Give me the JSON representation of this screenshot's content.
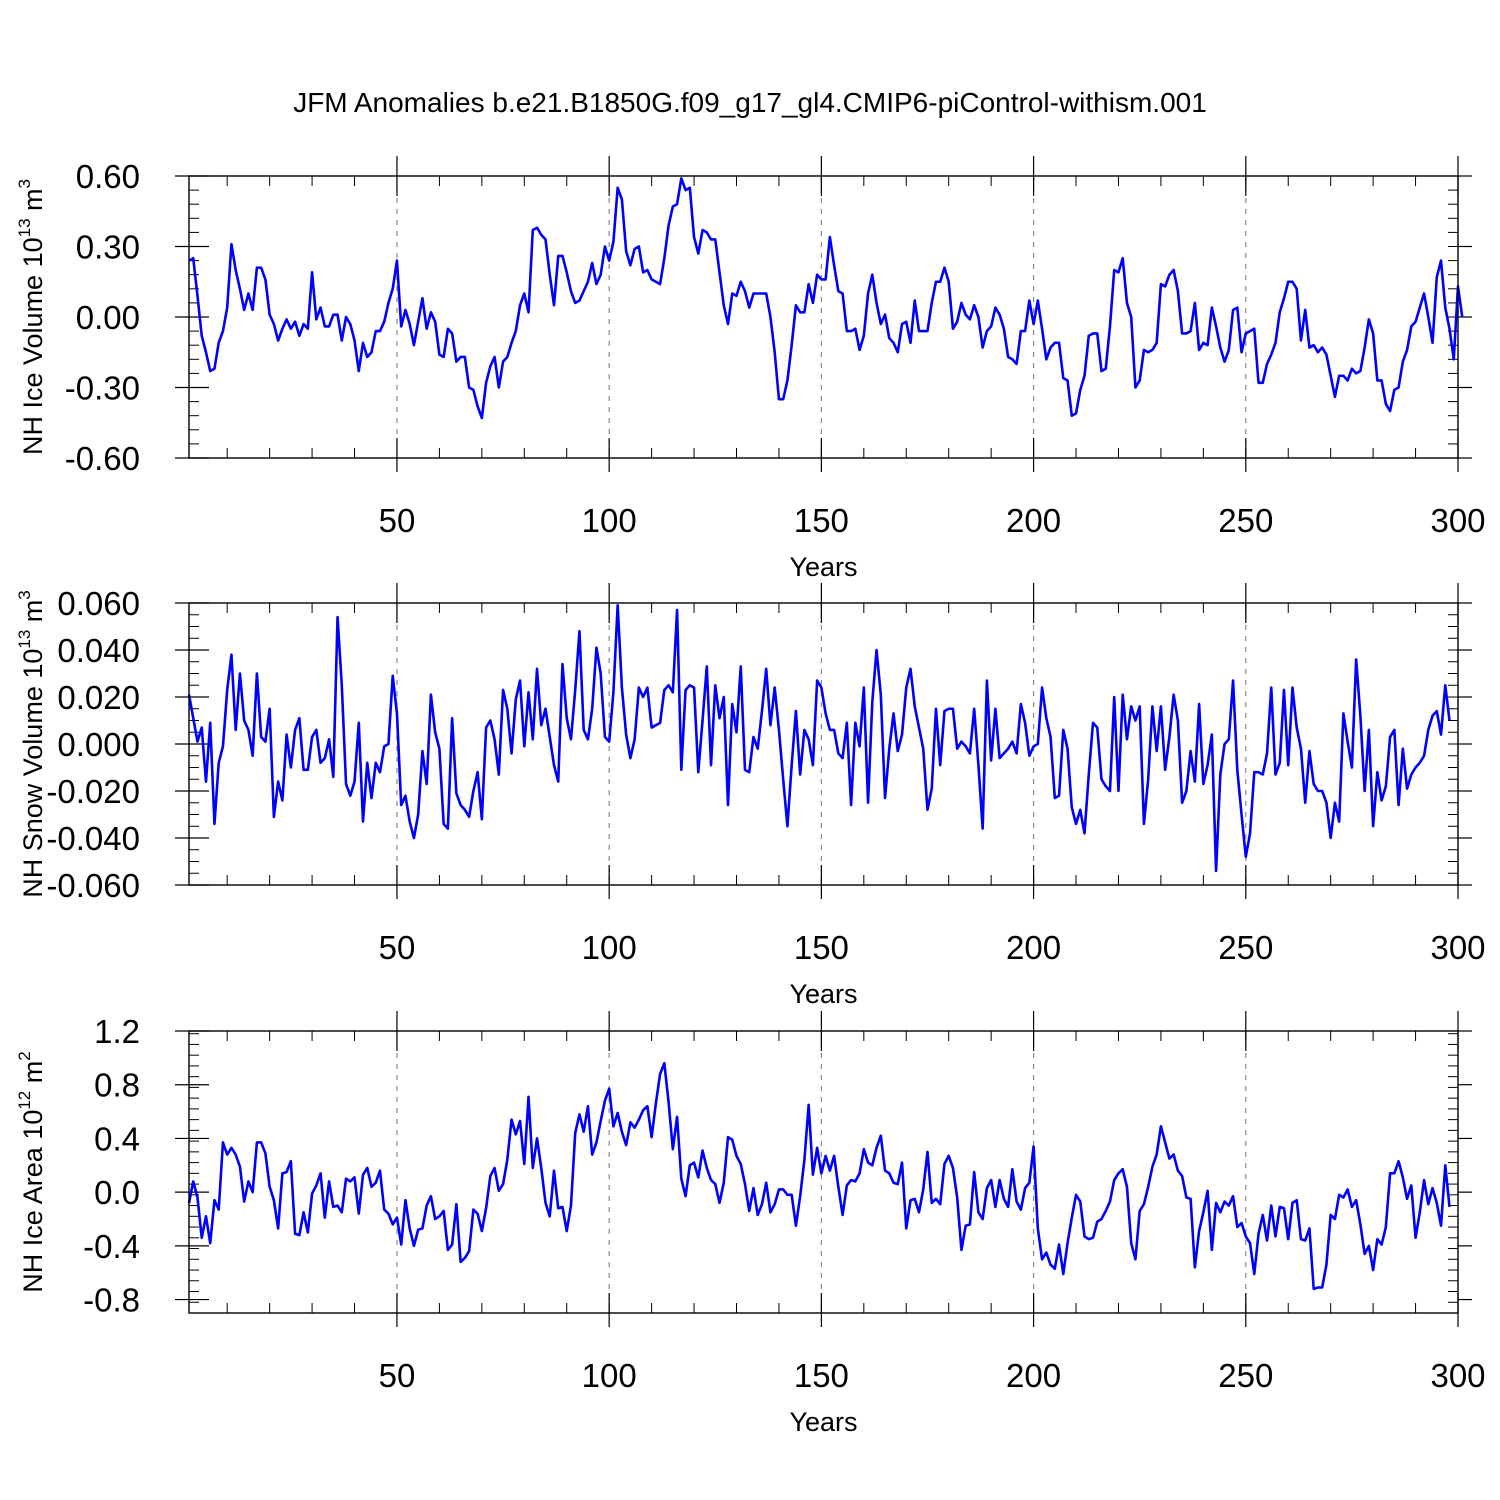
{
  "title": "JFM Anomalies b.e21.B1850G.f09_g17_gl4.CMIP6-piControl-withism.001",
  "colors": {
    "series": "#0000ff",
    "grid": "#888888",
    "axis": "#000000"
  },
  "chart_data": [
    {
      "type": "line",
      "xlabel": "Years",
      "ylabel": {
        "main": "NH Ice Volume 10",
        "exp": "13",
        "unit": " m",
        "unit_exp": "3"
      },
      "xlim": [
        1,
        300
      ],
      "ylim": [
        -0.6,
        0.6
      ],
      "xticks": [
        50,
        100,
        150,
        200,
        250,
        300
      ],
      "xtick_labels": [
        "50",
        "100",
        "150",
        "200",
        "250",
        "300"
      ],
      "yticks": [
        0.6,
        0.3,
        0.0,
        -0.3,
        -0.6
      ],
      "ytick_labels": [
        "0.60",
        "0.30",
        "0.00",
        "-0.30",
        "-0.60"
      ],
      "y_minor": 0.06,
      "grid_x": [
        50,
        100,
        150,
        200,
        250
      ],
      "start_year": 1,
      "values": [
        0.24,
        0.25,
        0.09,
        -0.08,
        -0.15,
        -0.23,
        -0.22,
        -0.11,
        -0.06,
        0.04,
        0.31,
        0.2,
        0.12,
        0.03,
        0.1,
        0.03,
        0.21,
        0.21,
        0.16,
        0.01,
        -0.03,
        -0.1,
        -0.05,
        -0.01,
        -0.05,
        -0.02,
        -0.08,
        -0.03,
        -0.05,
        0.19,
        -0.01,
        0.04,
        -0.04,
        -0.04,
        0.01,
        0.01,
        -0.1,
        0.0,
        -0.03,
        -0.1,
        -0.23,
        -0.11,
        -0.17,
        -0.15,
        -0.06,
        -0.06,
        -0.02,
        0.06,
        0.12,
        0.24,
        -0.04,
        0.03,
        -0.03,
        -0.12,
        -0.02,
        0.08,
        -0.05,
        0.02,
        -0.02,
        -0.16,
        -0.17,
        -0.05,
        -0.07,
        -0.19,
        -0.17,
        -0.17,
        -0.3,
        -0.31,
        -0.38,
        -0.43,
        -0.28,
        -0.21,
        -0.17,
        -0.3,
        -0.19,
        -0.17,
        -0.11,
        -0.06,
        0.05,
        0.1,
        0.02,
        0.37,
        0.38,
        0.35,
        0.33,
        0.18,
        0.05,
        0.26,
        0.26,
        0.19,
        0.11,
        0.06,
        0.07,
        0.11,
        0.15,
        0.23,
        0.14,
        0.18,
        0.3,
        0.24,
        0.32,
        0.55,
        0.5,
        0.28,
        0.22,
        0.29,
        0.3,
        0.19,
        0.2,
        0.16,
        0.15,
        0.14,
        0.25,
        0.39,
        0.47,
        0.48,
        0.59,
        0.54,
        0.55,
        0.34,
        0.27,
        0.37,
        0.36,
        0.33,
        0.33,
        0.19,
        0.05,
        -0.03,
        0.1,
        0.09,
        0.15,
        0.11,
        0.04,
        0.1,
        0.1,
        0.1,
        0.1,
        0.0,
        -0.15,
        -0.35,
        -0.35,
        -0.27,
        -0.12,
        0.05,
        0.02,
        0.02,
        0.14,
        0.06,
        0.18,
        0.16,
        0.16,
        0.34,
        0.22,
        0.11,
        0.1,
        -0.06,
        -0.06,
        -0.05,
        -0.14,
        -0.08,
        0.1,
        0.18,
        0.06,
        -0.03,
        0.01,
        -0.09,
        -0.11,
        -0.15,
        -0.03,
        -0.02,
        -0.11,
        0.07,
        -0.06,
        -0.06,
        -0.06,
        0.06,
        0.15,
        0.15,
        0.21,
        0.15,
        -0.05,
        -0.02,
        0.06,
        0.01,
        -0.01,
        0.05,
        0.0,
        -0.13,
        -0.06,
        -0.04,
        0.04,
        0.01,
        -0.05,
        -0.17,
        -0.18,
        -0.2,
        -0.06,
        -0.06,
        0.07,
        -0.03,
        0.07,
        -0.05,
        -0.18,
        -0.13,
        -0.11,
        -0.11,
        -0.26,
        -0.27,
        -0.42,
        -0.41,
        -0.31,
        -0.25,
        -0.08,
        -0.07,
        -0.07,
        -0.23,
        -0.22,
        -0.04,
        0.2,
        0.19,
        0.25,
        0.06,
        0.0,
        -0.3,
        -0.27,
        -0.14,
        -0.15,
        -0.14,
        -0.11,
        0.14,
        0.13,
        0.18,
        0.2,
        0.11,
        -0.07,
        -0.07,
        -0.06,
        0.06,
        -0.14,
        -0.11,
        -0.12,
        0.04,
        -0.04,
        -0.13,
        -0.19,
        -0.14,
        0.03,
        0.04,
        -0.15,
        -0.07,
        -0.06,
        -0.05,
        -0.28,
        -0.28,
        -0.2,
        -0.16,
        -0.11,
        0.02,
        0.08,
        0.15,
        0.15,
        0.12,
        -0.1,
        0.03,
        -0.13,
        -0.12,
        -0.15,
        -0.13,
        -0.16,
        -0.25,
        -0.34,
        -0.25,
        -0.25,
        -0.27,
        -0.22,
        -0.24,
        -0.23,
        -0.13,
        -0.01,
        -0.07,
        -0.27,
        -0.27,
        -0.37,
        -0.4,
        -0.31,
        -0.3,
        -0.19,
        -0.14,
        -0.04,
        -0.02,
        0.04,
        0.1,
        0.0,
        -0.11,
        0.17,
        0.24,
        0.04,
        -0.05,
        -0.18,
        0.13,
        0.0
      ]
    },
    {
      "type": "line",
      "xlabel": "Years",
      "ylabel": {
        "main": "NH Snow Volume 10",
        "exp": "13",
        "unit": " m",
        "unit_exp": "3"
      },
      "xlim": [
        1,
        300
      ],
      "ylim": [
        -0.06,
        0.06
      ],
      "xticks": [
        50,
        100,
        150,
        200,
        250,
        300
      ],
      "xtick_labels": [
        "50",
        "100",
        "150",
        "200",
        "250",
        "300"
      ],
      "yticks": [
        0.06,
        0.04,
        0.02,
        0.0,
        -0.02,
        -0.04,
        -0.06
      ],
      "ytick_labels": [
        "0.060",
        "0.040",
        "0.020",
        "0.000",
        "-0.020",
        "-0.040",
        "-0.060"
      ],
      "y_minor": 0.005,
      "grid_x": [
        50,
        100,
        150,
        200,
        250
      ],
      "start_year": 1,
      "values": [
        0.021,
        0.011,
        0.001,
        0.007,
        -0.016,
        0.009,
        -0.034,
        -0.008,
        -0.001,
        0.023,
        0.038,
        0.006,
        0.03,
        0.01,
        0.006,
        -0.005,
        0.03,
        0.003,
        0.001,
        0.015,
        -0.031,
        -0.016,
        -0.024,
        0.004,
        -0.01,
        0.006,
        0.011,
        -0.011,
        -0.011,
        0.003,
        0.006,
        -0.008,
        -0.006,
        0.002,
        -0.014,
        0.054,
        0.025,
        -0.017,
        -0.022,
        -0.016,
        0.009,
        -0.033,
        -0.008,
        -0.023,
        -0.008,
        -0.012,
        -0.001,
        0.0,
        0.029,
        0.013,
        -0.026,
        -0.022,
        -0.033,
        -0.04,
        -0.03,
        -0.003,
        -0.017,
        0.021,
        0.005,
        -0.002,
        -0.034,
        -0.036,
        0.011,
        -0.021,
        -0.026,
        -0.028,
        -0.031,
        -0.02,
        -0.012,
        -0.032,
        0.007,
        0.01,
        0.002,
        -0.013,
        0.023,
        0.015,
        -0.004,
        0.019,
        0.027,
        -0.001,
        0.022,
        0.002,
        0.032,
        0.008,
        0.015,
        0.003,
        -0.009,
        -0.016,
        0.034,
        0.011,
        0.002,
        0.023,
        0.048,
        0.006,
        0.002,
        0.015,
        0.041,
        0.03,
        0.003,
        0.001,
        0.022,
        0.059,
        0.024,
        0.004,
        -0.006,
        0.002,
        0.024,
        0.02,
        0.024,
        0.007,
        0.008,
        0.009,
        0.023,
        0.025,
        0.022,
        0.057,
        -0.011,
        0.023,
        0.025,
        0.024,
        -0.012,
        0.01,
        0.033,
        -0.009,
        0.025,
        0.011,
        0.02,
        -0.026,
        0.017,
        0.005,
        0.033,
        -0.011,
        -0.012,
        0.003,
        -0.002,
        0.014,
        0.032,
        0.008,
        0.024,
        0.006,
        -0.015,
        -0.035,
        -0.009,
        0.014,
        -0.013,
        0.006,
        0.002,
        -0.009,
        0.027,
        0.024,
        0.013,
        0.006,
        0.006,
        -0.004,
        -0.006,
        0.009,
        -0.026,
        0.009,
        -0.001,
        0.024,
        -0.025,
        0.018,
        0.04,
        0.021,
        -0.023,
        -0.002,
        0.013,
        -0.003,
        0.004,
        0.024,
        0.032,
        0.016,
        0.007,
        -0.002,
        -0.028,
        -0.019,
        0.015,
        -0.009,
        0.014,
        0.015,
        0.015,
        -0.002,
        0.001,
        -0.001,
        -0.004,
        0.015,
        -0.009,
        -0.036,
        0.027,
        -0.007,
        0.015,
        -0.006,
        -0.004,
        -0.002,
        0.001,
        -0.004,
        0.017,
        0.009,
        -0.005,
        -0.001,
        0.0,
        0.024,
        0.011,
        0.003,
        -0.023,
        -0.022,
        0.006,
        -0.002,
        -0.027,
        -0.034,
        -0.028,
        -0.038,
        -0.013,
        0.009,
        0.007,
        -0.015,
        -0.018,
        -0.02,
        0.02,
        -0.02,
        0.021,
        0.002,
        0.016,
        0.01,
        0.016,
        -0.034,
        -0.015,
        0.016,
        -0.003,
        0.016,
        -0.011,
        0.003,
        0.021,
        0.01,
        -0.025,
        -0.02,
        -0.003,
        -0.016,
        0.017,
        -0.017,
        -0.009,
        0.004,
        -0.054,
        -0.013,
        0.0,
        0.002,
        0.027,
        -0.011,
        -0.03,
        -0.048,
        -0.038,
        -0.012,
        -0.012,
        -0.013,
        -0.004,
        0.024,
        -0.013,
        -0.008,
        0.023,
        -0.009,
        0.024,
        0.007,
        -0.002,
        -0.025,
        -0.003,
        -0.017,
        -0.02,
        -0.02,
        -0.025,
        -0.04,
        -0.025,
        -0.033,
        0.013,
        0.001,
        -0.01,
        0.036,
        0.012,
        -0.02,
        0.006,
        -0.035,
        -0.012,
        -0.024,
        -0.018,
        0.003,
        0.006,
        -0.026,
        -0.002,
        -0.019,
        -0.013,
        -0.01,
        -0.008,
        -0.005,
        0.006,
        0.012,
        0.014,
        0.004,
        0.025,
        0.01
      ]
    },
    {
      "type": "line",
      "xlabel": "Years",
      "ylabel": {
        "main": "NH Ice Area 10",
        "exp": "12",
        "unit": " m",
        "unit_exp": "2"
      },
      "xlim": [
        1,
        300
      ],
      "ylim": [
        -0.9,
        1.2
      ],
      "xticks": [
        50,
        100,
        150,
        200,
        250,
        300
      ],
      "xtick_labels": [
        "50",
        "100",
        "150",
        "200",
        "250",
        "300"
      ],
      "yticks": [
        1.2,
        0.8,
        0.4,
        0.0,
        -0.4,
        -0.8
      ],
      "ytick_labels": [
        "1.2",
        "0.8",
        "0.4",
        "0.0",
        "-0.4",
        "-0.8"
      ],
      "y_minor": 0.08,
      "grid_x": [
        50,
        100,
        150,
        200,
        250
      ],
      "start_year": 1,
      "values": [
        -0.08,
        0.08,
        -0.04,
        -0.34,
        -0.18,
        -0.38,
        -0.06,
        -0.13,
        0.37,
        0.28,
        0.33,
        0.28,
        0.19,
        -0.07,
        0.08,
        0.0,
        0.37,
        0.37,
        0.29,
        0.04,
        -0.06,
        -0.27,
        0.14,
        0.15,
        0.23,
        -0.31,
        -0.32,
        -0.15,
        -0.3,
        -0.01,
        0.05,
        0.14,
        -0.19,
        0.08,
        -0.11,
        -0.1,
        -0.15,
        0.1,
        0.08,
        0.11,
        -0.16,
        0.13,
        0.18,
        0.04,
        0.07,
        0.16,
        -0.13,
        -0.16,
        -0.24,
        -0.19,
        -0.39,
        -0.06,
        -0.27,
        -0.4,
        -0.28,
        -0.27,
        -0.1,
        -0.03,
        -0.2,
        -0.18,
        -0.14,
        -0.43,
        -0.39,
        -0.09,
        -0.52,
        -0.49,
        -0.44,
        -0.13,
        -0.16,
        -0.29,
        -0.12,
        0.12,
        0.18,
        0.01,
        0.06,
        0.24,
        0.54,
        0.43,
        0.53,
        0.21,
        0.71,
        0.18,
        0.4,
        0.18,
        -0.08,
        -0.18,
        0.16,
        -0.12,
        -0.11,
        -0.29,
        -0.1,
        0.44,
        0.58,
        0.45,
        0.64,
        0.28,
        0.37,
        0.53,
        0.68,
        0.77,
        0.49,
        0.59,
        0.45,
        0.35,
        0.52,
        0.48,
        0.54,
        0.61,
        0.64,
        0.41,
        0.66,
        0.88,
        0.96,
        0.67,
        0.32,
        0.56,
        0.1,
        -0.03,
        0.2,
        0.22,
        0.11,
        0.31,
        0.18,
        0.09,
        0.06,
        -0.08,
        0.07,
        0.41,
        0.39,
        0.27,
        0.21,
        0.06,
        -0.14,
        0.03,
        -0.17,
        -0.09,
        0.07,
        -0.15,
        -0.09,
        0.02,
        0.02,
        -0.02,
        -0.02,
        -0.25,
        -0.03,
        0.24,
        0.65,
        0.13,
        0.33,
        0.14,
        0.27,
        0.16,
        0.27,
        0.04,
        -0.17,
        0.05,
        0.09,
        0.08,
        0.14,
        0.32,
        0.22,
        0.2,
        0.33,
        0.42,
        0.16,
        0.14,
        0.07,
        0.06,
        0.22,
        -0.27,
        -0.06,
        -0.05,
        -0.15,
        0.02,
        0.3,
        -0.08,
        -0.05,
        -0.09,
        0.21,
        0.27,
        0.18,
        -0.04,
        -0.43,
        -0.25,
        -0.24,
        0.15,
        -0.15,
        -0.2,
        0.03,
        0.09,
        -0.11,
        0.09,
        -0.05,
        -0.11,
        0.17,
        -0.07,
        -0.13,
        0.03,
        0.07,
        0.34,
        -0.27,
        -0.5,
        -0.45,
        -0.54,
        -0.57,
        -0.39,
        -0.61,
        -0.38,
        -0.19,
        -0.02,
        -0.07,
        -0.33,
        -0.35,
        -0.34,
        -0.22,
        -0.2,
        -0.14,
        -0.07,
        0.09,
        0.14,
        0.17,
        0.04,
        -0.38,
        -0.5,
        -0.14,
        -0.09,
        0.04,
        0.19,
        0.28,
        0.49,
        0.37,
        0.25,
        0.28,
        0.16,
        0.12,
        -0.04,
        -0.05,
        -0.56,
        -0.29,
        -0.15,
        0.01,
        -0.43,
        -0.08,
        -0.15,
        -0.07,
        -0.1,
        -0.03,
        -0.26,
        -0.23,
        -0.33,
        -0.38,
        -0.61,
        -0.31,
        -0.17,
        -0.36,
        -0.1,
        -0.33,
        -0.11,
        -0.12,
        -0.35,
        -0.08,
        -0.06,
        -0.35,
        -0.36,
        -0.27,
        -0.72,
        -0.71,
        -0.71,
        -0.54,
        -0.17,
        -0.2,
        -0.02,
        -0.04,
        0.02,
        -0.11,
        -0.06,
        -0.24,
        -0.46,
        -0.4,
        -0.58,
        -0.35,
        -0.39,
        -0.26,
        0.14,
        0.14,
        0.23,
        0.11,
        -0.05,
        0.05,
        -0.34,
        -0.15,
        0.09,
        -0.09,
        0.03,
        -0.08,
        -0.25,
        0.2,
        -0.11
      ]
    }
  ]
}
